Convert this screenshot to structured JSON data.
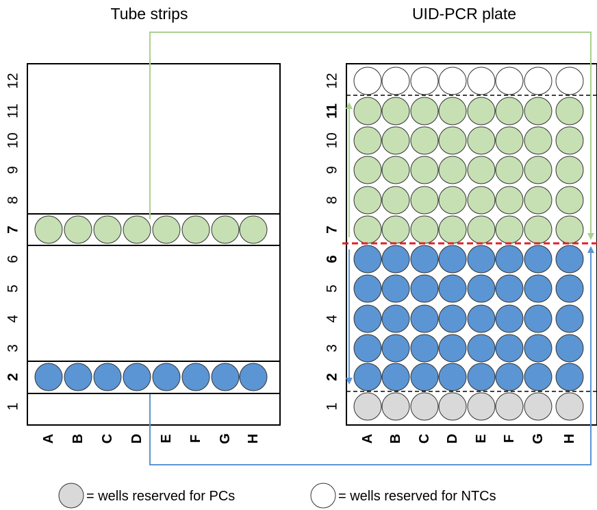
{
  "titles": {
    "left": "Tube strips",
    "right": "UID-PCR plate"
  },
  "columns": [
    "A",
    "B",
    "C",
    "D",
    "E",
    "F",
    "G",
    "H"
  ],
  "rows": [
    "1",
    "2",
    "3",
    "4",
    "5",
    "6",
    "7",
    "8",
    "9",
    "10",
    "11",
    "12"
  ],
  "tube_strips": {
    "bold_rows": [
      "2",
      "7"
    ],
    "filled_rows": {
      "2": "blue",
      "7": "green"
    }
  },
  "plate": {
    "bold_rows": [
      "2",
      "6",
      "7",
      "11"
    ],
    "row_fill": {
      "1": "grey",
      "2": "blue",
      "3": "blue",
      "4": "blue",
      "5": "blue",
      "6": "blue",
      "7": "green",
      "8": "green",
      "9": "green",
      "10": "green",
      "11": "green",
      "12": "white"
    }
  },
  "colors": {
    "blue": "#5b95d4",
    "green": "#c6e0b4",
    "grey": "#d9d9d9",
    "white": "#ffffff",
    "blue_line": "#5b95d4",
    "green_line": "#a9d18e",
    "red_dash": "#e0202a"
  },
  "legend": {
    "pc_text": "= wells reserved for PCs",
    "ntc_text": "= wells reserved for NTCs"
  }
}
